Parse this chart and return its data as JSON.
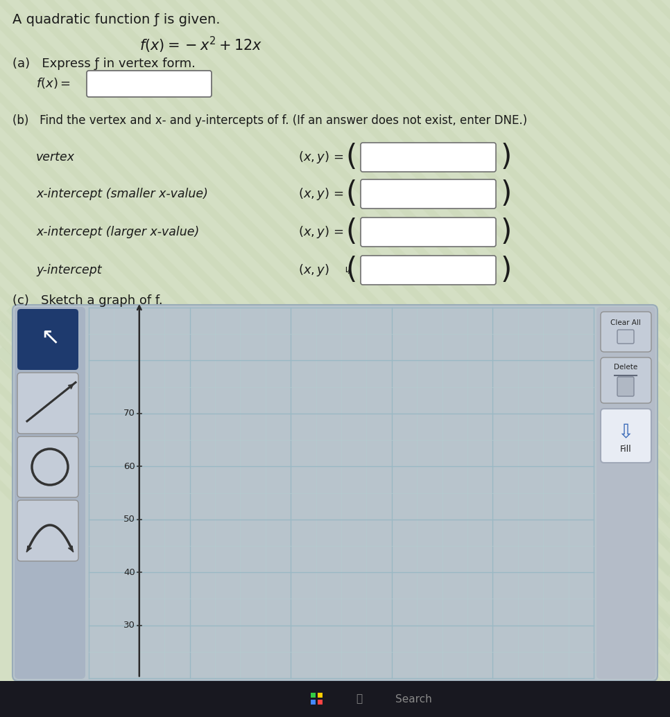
{
  "bg_color": "#d4dfc4",
  "text_color": "#1a1a1a",
  "title_line": "A quadratic function ƒ is given.",
  "function_display": "$f(x) = -x^2 + 12x$",
  "part_a_label": "(a)   Express ƒ in vertex form.",
  "part_b_label": "(b)   Find the vertex and x- and y-intercepts of f. (If an answer does not exist, enter DNE.)",
  "vertex_label": "vertex",
  "x_small_label": "x-intercept (smaller x-value)",
  "x_large_label": "x-intercept (larger x-value)",
  "y_int_label": "y-intercept",
  "part_c_label": "(c)   Sketch a graph of f.",
  "graph_yticks": [
    30,
    40,
    50,
    60,
    70
  ],
  "bg_stripe_color": "#ccd8b8",
  "graph_outer_color": "#b8c4cc",
  "graph_grid_bg": "#dce8cc",
  "graph_grid_major": "#9ab8c4",
  "graph_grid_minor": "#b4ccd0",
  "left_panel_color": "#a8b4c4",
  "right_panel_color": "#b4bcc8",
  "cursor_btn_color": "#1e3a6e",
  "btn_face_color": "#c4ccd8",
  "fill_btn_face": "#e8ecf0",
  "taskbar_color": "#181820",
  "search_bg": "#252535",
  "win_icon_color": "#4488ff"
}
